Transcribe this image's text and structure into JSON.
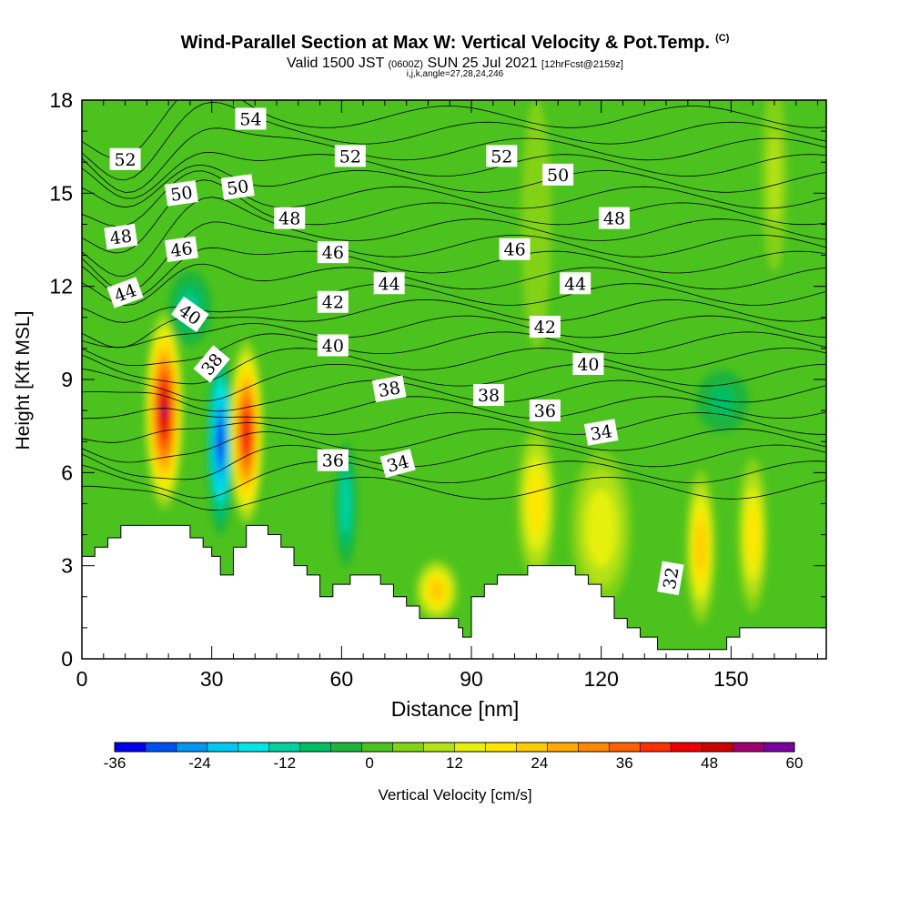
{
  "title": {
    "main": "Wind-Parallel Section at Max W: Vertical Velocity & Pot.Temp.",
    "copyright": "(C)",
    "valid_prefix": "Valid 1500 JST",
    "valid_utc": "(0600Z)",
    "valid_date": "SUN 25 Jul 2021",
    "forecast": "[12hrFcst@2159z]",
    "indices": "i,j,k,angle=27,28,24,246"
  },
  "colors": {
    "background_field": "#4cc21e",
    "terrain": "#ffffff",
    "contour": "#000000",
    "colorbar": [
      "#0000ee",
      "#0050f0",
      "#0096f0",
      "#00c8f0",
      "#00e6e6",
      "#00d2a0",
      "#00be64",
      "#1eb43c",
      "#4cc21e",
      "#82d218",
      "#b4e114",
      "#e6f00a",
      "#ffe600",
      "#ffcc00",
      "#ffaa00",
      "#ff8800",
      "#ff6000",
      "#ff3000",
      "#ee0000",
      "#cc0000",
      "#a0006e",
      "#7a00a0"
    ]
  },
  "chart_data": {
    "type": "heatmap",
    "xlabel": "Distance [nm]",
    "ylabel": "Height [Kft MSL]",
    "xlim": [
      0,
      172
    ],
    "ylim": [
      0,
      18
    ],
    "x_ticks": [
      0,
      30,
      60,
      90,
      120,
      150
    ],
    "y_ticks": [
      0,
      3,
      6,
      9,
      12,
      15,
      18
    ],
    "colorbar": {
      "label": "Vertical Velocity [cm/s]",
      "min": -36,
      "max": 60,
      "step": 4.36,
      "tick_labels": [
        -36,
        -24,
        -12,
        0,
        12,
        24,
        36,
        48,
        60
      ]
    },
    "vertical_velocity_cells": [
      {
        "x": 19,
        "y": 8.0,
        "rx": 4.5,
        "ry": 3.2,
        "w": 52
      },
      {
        "x": 32,
        "y": 7.0,
        "rx": 3.2,
        "ry": 3.0,
        "w": -34
      },
      {
        "x": 38,
        "y": 7.3,
        "rx": 4.0,
        "ry": 3.0,
        "w": 45
      },
      {
        "x": 61,
        "y": 5.0,
        "rx": 2.5,
        "ry": 2.0,
        "w": -14
      },
      {
        "x": 82,
        "y": 2.2,
        "rx": 5.0,
        "ry": 1.0,
        "w": 22
      },
      {
        "x": 105,
        "y": 5.0,
        "rx": 4.5,
        "ry": 2.5,
        "w": 20
      },
      {
        "x": 120,
        "y": 4.2,
        "rx": 7.0,
        "ry": 2.5,
        "w": 16
      },
      {
        "x": 143,
        "y": 3.6,
        "rx": 3.5,
        "ry": 2.5,
        "w": 22
      },
      {
        "x": 155,
        "y": 4.0,
        "rx": 3.5,
        "ry": 2.5,
        "w": 18
      },
      {
        "x": 25,
        "y": 11.3,
        "rx": 5.0,
        "ry": 1.2,
        "w": -10
      },
      {
        "x": 148,
        "y": 8.3,
        "rx": 6.0,
        "ry": 1.0,
        "w": -8
      },
      {
        "x": 160,
        "y": 15.5,
        "rx": 3.0,
        "ry": 3.0,
        "w": 8
      },
      {
        "x": 105,
        "y": 14.0,
        "rx": 3.5,
        "ry": 4.0,
        "w": 6
      }
    ],
    "terrain_kft": [
      [
        0,
        3.3
      ],
      [
        3,
        3.6
      ],
      [
        6,
        3.9
      ],
      [
        9,
        4.3
      ],
      [
        16,
        4.3
      ],
      [
        22,
        4.3
      ],
      [
        25,
        3.9
      ],
      [
        28,
        3.6
      ],
      [
        30,
        3.3
      ],
      [
        32,
        2.7
      ],
      [
        35,
        3.6
      ],
      [
        38,
        4.3
      ],
      [
        43,
        4.0
      ],
      [
        46,
        3.6
      ],
      [
        49,
        3.0
      ],
      [
        52,
        2.7
      ],
      [
        55,
        2.0
      ],
      [
        58,
        2.4
      ],
      [
        62,
        2.7
      ],
      [
        66,
        2.7
      ],
      [
        69,
        2.4
      ],
      [
        72,
        2.0
      ],
      [
        75,
        1.7
      ],
      [
        78,
        1.3
      ],
      [
        84,
        1.3
      ],
      [
        87,
        1.0
      ],
      [
        88,
        0.7
      ],
      [
        90,
        2.0
      ],
      [
        93,
        2.4
      ],
      [
        96,
        2.7
      ],
      [
        103,
        3.0
      ],
      [
        110,
        3.0
      ],
      [
        114,
        2.7
      ],
      [
        117,
        2.4
      ],
      [
        120,
        2.0
      ],
      [
        123,
        1.3
      ],
      [
        126,
        1.0
      ],
      [
        129,
        0.7
      ],
      [
        133,
        0.3
      ],
      [
        146,
        0.3
      ],
      [
        149,
        0.7
      ],
      [
        152,
        1.0
      ],
      [
        168,
        1.0
      ],
      [
        172,
        1.0
      ]
    ],
    "theta_contours_label_values": [
      32,
      34,
      36,
      38,
      40,
      42,
      44,
      46,
      48,
      50,
      52,
      54
    ],
    "contour_labels": [
      {
        "v": "54",
        "x": 39,
        "y": 17.4,
        "rot": 0
      },
      {
        "v": "52",
        "x": 10,
        "y": 16.1,
        "rot": 0
      },
      {
        "v": "52",
        "x": 62,
        "y": 16.2,
        "rot": 0
      },
      {
        "v": "52",
        "x": 97,
        "y": 16.2,
        "rot": 0
      },
      {
        "v": "50",
        "x": 23,
        "y": 15.0,
        "rot": -8
      },
      {
        "v": "50",
        "x": 36,
        "y": 15.2,
        "rot": -8
      },
      {
        "v": "50",
        "x": 110,
        "y": 15.6,
        "rot": 0
      },
      {
        "v": "48",
        "x": 48,
        "y": 14.2,
        "rot": 0
      },
      {
        "v": "48",
        "x": 123,
        "y": 14.2,
        "rot": 0
      },
      {
        "v": "48",
        "x": 9,
        "y": 13.6,
        "rot": -8
      },
      {
        "v": "46",
        "x": 23,
        "y": 13.2,
        "rot": -8
      },
      {
        "v": "46",
        "x": 58,
        "y": 13.1,
        "rot": 0
      },
      {
        "v": "46",
        "x": 100,
        "y": 13.2,
        "rot": 0
      },
      {
        "v": "44",
        "x": 10,
        "y": 11.8,
        "rot": -20
      },
      {
        "v": "44",
        "x": 71,
        "y": 12.1,
        "rot": 0
      },
      {
        "v": "44",
        "x": 114,
        "y": 12.1,
        "rot": 0
      },
      {
        "v": "42",
        "x": 58,
        "y": 11.5,
        "rot": 0
      },
      {
        "v": "42",
        "x": 107,
        "y": 10.7,
        "rot": 0
      },
      {
        "v": "40",
        "x": 25,
        "y": 11.1,
        "rot": 35
      },
      {
        "v": "40",
        "x": 58,
        "y": 10.1,
        "rot": 0
      },
      {
        "v": "40",
        "x": 117,
        "y": 9.5,
        "rot": 0
      },
      {
        "v": "38",
        "x": 30,
        "y": 9.5,
        "rot": -50
      },
      {
        "v": "38",
        "x": 71,
        "y": 8.7,
        "rot": -10
      },
      {
        "v": "38",
        "x": 94,
        "y": 8.5,
        "rot": 0
      },
      {
        "v": "36",
        "x": 58,
        "y": 6.4,
        "rot": 0
      },
      {
        "v": "36",
        "x": 107,
        "y": 8.0,
        "rot": 0
      },
      {
        "v": "34",
        "x": 73,
        "y": 6.3,
        "rot": -15
      },
      {
        "v": "34",
        "x": 120,
        "y": 7.3,
        "rot": -10
      },
      {
        "v": "32",
        "x": 136,
        "y": 2.6,
        "rot": -80
      }
    ]
  }
}
